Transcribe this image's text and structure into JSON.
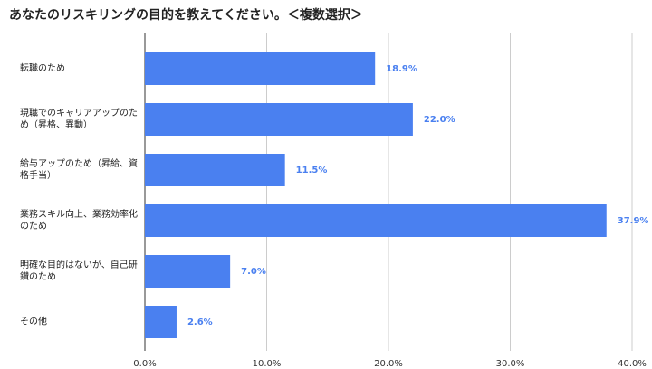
{
  "chart_data": {
    "type": "barh",
    "title": "あなたのリスキリングの目的を教えてください。＜複数選択＞",
    "categories": [
      "転職のため",
      "現職でのキャリアアップのため（昇格、異動）",
      "給与アップのため（昇給、資格手当）",
      "業務スキル向上、業務効率化のため",
      "明確な目的はないが、自己研鑽のため",
      "その他"
    ],
    "values": [
      18.9,
      22.0,
      11.5,
      37.9,
      7.0,
      2.6
    ],
    "value_labels": [
      "18.9%",
      "22.0%",
      "11.5%",
      "37.9%",
      "7.0%",
      "2.6%"
    ],
    "color": "#4a80f0",
    "xlim": [
      0,
      40
    ],
    "xticks": [
      {
        "value": 0,
        "label": "0.0%"
      },
      {
        "value": 10,
        "label": "10.0%"
      },
      {
        "value": 20,
        "label": "20.0%"
      },
      {
        "value": 30,
        "label": "30.0%"
      },
      {
        "value": 40,
        "label": "40.0%"
      }
    ],
    "grid": true
  }
}
